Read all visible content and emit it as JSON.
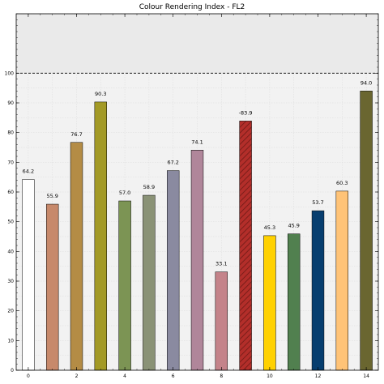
{
  "chart_data": {
    "type": "bar",
    "title": "Colour Rendering Index - FL2",
    "xlabel": "",
    "ylabel": "",
    "x": [
      0,
      1,
      2,
      3,
      4,
      5,
      6,
      7,
      8,
      9,
      10,
      11,
      12,
      13,
      14
    ],
    "values": [
      64.2,
      55.9,
      76.7,
      90.3,
      57.0,
      58.9,
      67.2,
      74.1,
      33.1,
      -83.9,
      45.3,
      45.9,
      53.7,
      60.3,
      94.0
    ],
    "value_labels": [
      "64.2",
      "55.9",
      "76.7",
      "90.3",
      "57.0",
      "58.9",
      "67.2",
      "74.1",
      "33.1",
      "-83.9",
      "45.3",
      "45.9",
      "53.7",
      "60.3",
      "94.0"
    ],
    "colors": [
      "#ffffff",
      "#c7896b",
      "#b48c45",
      "#a39a26",
      "#7c9454",
      "#8a9276",
      "#8a8aa0",
      "#b0869a",
      "#c4838a",
      "#b32e2a",
      "#ffd100",
      "#51804f",
      "#073e6f",
      "#ffc377",
      "#6a6630"
    ],
    "hatched": [
      false,
      false,
      false,
      false,
      false,
      false,
      false,
      false,
      false,
      true,
      false,
      false,
      false,
      false,
      false
    ],
    "x_tick_labels": [
      "0",
      "2",
      "4",
      "6",
      "8",
      "10",
      "12",
      "14"
    ],
    "x_tick_values": [
      0,
      2,
      4,
      6,
      8,
      10,
      12,
      14
    ],
    "y_tick_labels": [
      "0",
      "10",
      "20",
      "30",
      "40",
      "50",
      "60",
      "70",
      "80",
      "90",
      "100"
    ],
    "y_tick_values": [
      0,
      10,
      20,
      30,
      40,
      50,
      60,
      70,
      80,
      90,
      100
    ],
    "ylim": [
      0,
      120
    ],
    "xlim": [
      -0.5,
      14.5
    ],
    "reference_line": 100,
    "grid": true,
    "background_color": "#f2f2f2"
  }
}
